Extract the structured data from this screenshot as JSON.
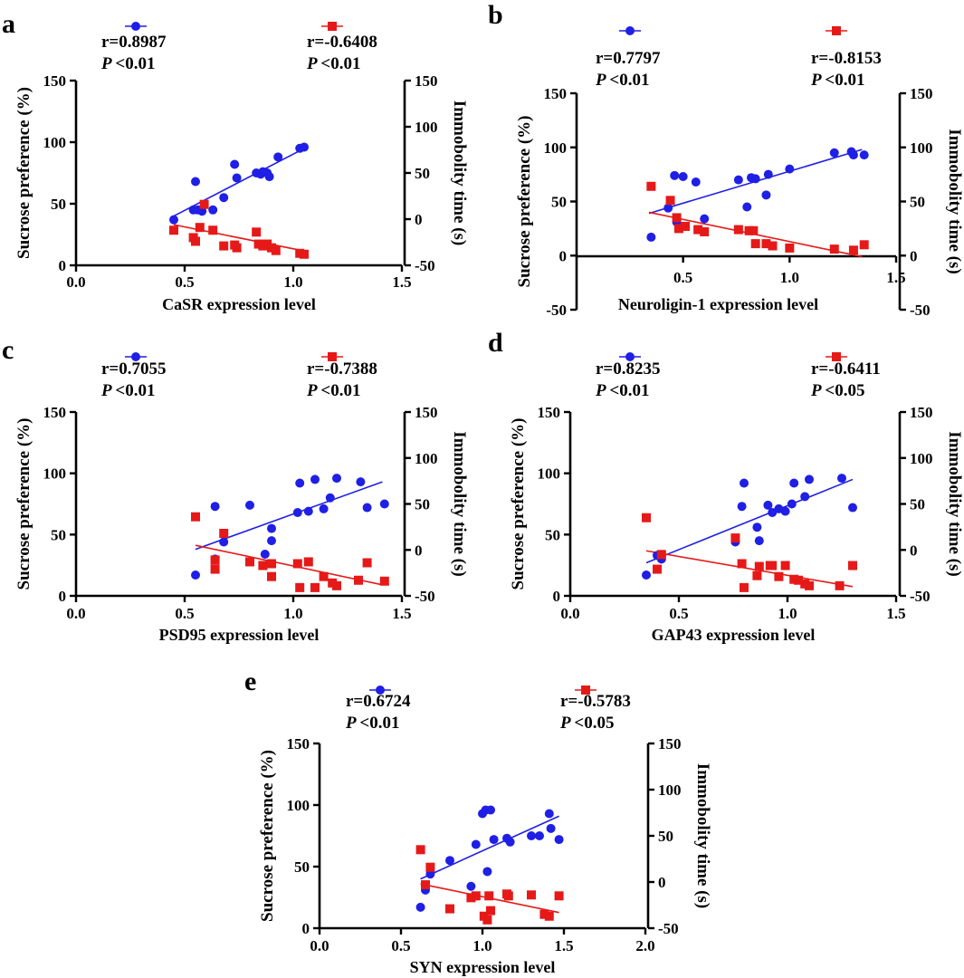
{
  "colors": {
    "sucrose": "#1f1fe6",
    "immobility": "#e61919",
    "axis": "#000000"
  },
  "chart_data": [
    {
      "panel": "a",
      "type": "scatter",
      "xlabel": "CaSR expression level",
      "ylabel_left": "Sucrose preference (%)",
      "ylabel_right": "Immobolity time (s)",
      "xlim": [
        0,
        1.5
      ],
      "xticks": [
        "0.0",
        "0.5",
        "1.0",
        "1.5"
      ],
      "ylim_left": [
        0,
        150
      ],
      "yticks_left": [
        "0",
        "50",
        "100",
        "150"
      ],
      "ylim_right": [
        -50,
        150
      ],
      "yticks_right": [
        "-50",
        "0",
        "50",
        "100",
        "150"
      ],
      "stats": {
        "r_sucrose": "r=0.8987",
        "p_sucrose": "P<0.01",
        "r_immobility": "r=-0.6408",
        "p_immobility": "P<0.01"
      },
      "sucrose_points": [
        [
          0.45,
          37
        ],
        [
          0.54,
          45
        ],
        [
          0.55,
          68
        ],
        [
          0.56,
          45
        ],
        [
          0.58,
          44
        ],
        [
          0.63,
          45
        ],
        [
          0.68,
          55
        ],
        [
          0.73,
          82
        ],
        [
          0.74,
          71
        ],
        [
          0.83,
          75
        ],
        [
          0.85,
          74
        ],
        [
          0.86,
          76
        ],
        [
          0.88,
          75
        ],
        [
          0.89,
          72
        ],
        [
          0.93,
          88
        ],
        [
          1.03,
          95
        ],
        [
          1.05,
          96
        ]
      ],
      "sucrose_fit": [
        [
          0.45,
          40
        ],
        [
          1.04,
          94
        ]
      ],
      "immobility_points": [
        [
          0.45,
          -12
        ],
        [
          0.54,
          -20
        ],
        [
          0.55,
          -24
        ],
        [
          0.57,
          -9
        ],
        [
          0.59,
          16
        ],
        [
          0.63,
          -12
        ],
        [
          0.68,
          -29
        ],
        [
          0.73,
          -28
        ],
        [
          0.74,
          -31
        ],
        [
          0.83,
          -14
        ],
        [
          0.84,
          -27
        ],
        [
          0.86,
          -29
        ],
        [
          0.88,
          -27
        ],
        [
          0.9,
          -31
        ],
        [
          0.92,
          -34
        ],
        [
          1.03,
          -37
        ],
        [
          1.05,
          -38
        ]
      ],
      "immobility_fit": [
        [
          0.45,
          -6
        ],
        [
          1.04,
          -34
        ]
      ]
    },
    {
      "panel": "b",
      "type": "scatter",
      "xlabel": "Neuroligin-1 expression level",
      "ylabel_left": "Sucrose preference (%)",
      "ylabel_right": "Immobolity time (s)",
      "xlim": [
        0,
        1.5
      ],
      "xticks": [
        "0.5",
        "1.0",
        "1.5"
      ],
      "ylim_left": [
        -50,
        150
      ],
      "yticks_left": [
        "-50",
        "0",
        "50",
        "100",
        "150"
      ],
      "ylim_right": [
        -50,
        150
      ],
      "yticks_right": [
        "-50",
        "0",
        "50",
        "100",
        "150"
      ],
      "stats": {
        "r_sucrose": "r=0.7797",
        "p_sucrose": "P<0.01",
        "r_immobility": "r=-0.8153",
        "p_immobility": "P<0.01"
      },
      "sucrose_points": [
        [
          0.35,
          17
        ],
        [
          0.43,
          44
        ],
        [
          0.46,
          74
        ],
        [
          0.47,
          31
        ],
        [
          0.5,
          73
        ],
        [
          0.56,
          68
        ],
        [
          0.6,
          34
        ],
        [
          0.76,
          70
        ],
        [
          0.8,
          45
        ],
        [
          0.82,
          72
        ],
        [
          0.84,
          71
        ],
        [
          0.89,
          56
        ],
        [
          0.9,
          75
        ],
        [
          1.0,
          80
        ],
        [
          1.21,
          95
        ],
        [
          1.29,
          96
        ],
        [
          1.3,
          93
        ],
        [
          1.35,
          93
        ]
      ],
      "sucrose_fit": [
        [
          0.34,
          39
        ],
        [
          1.34,
          98
        ]
      ],
      "immobility_points": [
        [
          0.35,
          64
        ],
        [
          0.44,
          51
        ],
        [
          0.47,
          35
        ],
        [
          0.48,
          25
        ],
        [
          0.51,
          27
        ],
        [
          0.57,
          24
        ],
        [
          0.6,
          22
        ],
        [
          0.76,
          24
        ],
        [
          0.81,
          23
        ],
        [
          0.83,
          23
        ],
        [
          0.84,
          11
        ],
        [
          0.89,
          11
        ],
        [
          0.92,
          9
        ],
        [
          1.0,
          7
        ],
        [
          1.21,
          6
        ],
        [
          1.3,
          5
        ],
        [
          1.35,
          10
        ]
      ],
      "immobility_fit": [
        [
          0.34,
          40
        ],
        [
          1.34,
          -1
        ]
      ]
    },
    {
      "panel": "c",
      "type": "scatter",
      "xlabel": "PSD95 expression level",
      "ylabel_left": "Sucrose preference (%)",
      "ylabel_right": "Immobolity time (s)",
      "xlim": [
        0,
        1.5
      ],
      "xticks": [
        "0.0",
        "0.5",
        "1.0",
        "1.5"
      ],
      "ylim_left": [
        0,
        150
      ],
      "yticks_left": [
        "0",
        "50",
        "100",
        "150"
      ],
      "ylim_right": [
        -50,
        150
      ],
      "yticks_right": [
        "-50",
        "0",
        "50",
        "100",
        "150"
      ],
      "stats": {
        "r_sucrose": "r=0.7055",
        "p_sucrose": "P<0.01",
        "r_immobility": "r=-0.7388",
        "p_immobility": "P<0.01"
      },
      "sucrose_points": [
        [
          0.55,
          17
        ],
        [
          0.64,
          30
        ],
        [
          0.64,
          73
        ],
        [
          0.68,
          44
        ],
        [
          0.8,
          74
        ],
        [
          0.87,
          34
        ],
        [
          0.9,
          55
        ],
        [
          0.9,
          45
        ],
        [
          1.02,
          68
        ],
        [
          1.03,
          92
        ],
        [
          1.07,
          69
        ],
        [
          1.1,
          95
        ],
        [
          1.14,
          71
        ],
        [
          1.17,
          80
        ],
        [
          1.2,
          96
        ],
        [
          1.31,
          93
        ],
        [
          1.34,
          72
        ],
        [
          1.42,
          75
        ]
      ],
      "sucrose_fit": [
        [
          0.55,
          38
        ],
        [
          1.41,
          93
        ]
      ],
      "immobility_points": [
        [
          0.55,
          36
        ],
        [
          0.64,
          -21
        ],
        [
          0.64,
          -11
        ],
        [
          0.68,
          18
        ],
        [
          0.8,
          -13
        ],
        [
          0.86,
          -17
        ],
        [
          0.9,
          -15
        ],
        [
          0.9,
          -29
        ],
        [
          1.02,
          -15
        ],
        [
          1.03,
          -41
        ],
        [
          1.07,
          -13
        ],
        [
          1.1,
          -41
        ],
        [
          1.14,
          -29
        ],
        [
          1.18,
          -36
        ],
        [
          1.2,
          -39
        ],
        [
          1.3,
          -33
        ],
        [
          1.34,
          -14
        ],
        [
          1.42,
          -34
        ]
      ],
      "immobility_fit": [
        [
          0.55,
          5
        ],
        [
          1.41,
          -38
        ]
      ]
    },
    {
      "panel": "d",
      "type": "scatter",
      "xlabel": "GAP43 expression level",
      "ylabel_left": "Sucrose preference (%)",
      "ylabel_right": "Immobolity time (s)",
      "xlim": [
        0,
        1.5
      ],
      "xticks": [
        "0.0",
        "0.5",
        "1.0",
        "1.5"
      ],
      "ylim_left": [
        0,
        150
      ],
      "yticks_left": [
        "0",
        "50",
        "100",
        "150"
      ],
      "ylim_right": [
        -50,
        150
      ],
      "yticks_right": [
        "-50",
        "0",
        "50",
        "100",
        "150"
      ],
      "stats": {
        "r_sucrose": "r=0.8235",
        "p_sucrose": "P<0.01",
        "r_immobility": "r=-0.6411",
        "p_immobility": "P<0.05"
      },
      "sucrose_points": [
        [
          0.35,
          17
        ],
        [
          0.4,
          33
        ],
        [
          0.42,
          32
        ],
        [
          0.42,
          30
        ],
        [
          0.76,
          44
        ],
        [
          0.79,
          73
        ],
        [
          0.8,
          92
        ],
        [
          0.86,
          56
        ],
        [
          0.87,
          45
        ],
        [
          0.91,
          74
        ],
        [
          0.93,
          68
        ],
        [
          0.96,
          71
        ],
        [
          0.99,
          69
        ],
        [
          1.02,
          75
        ],
        [
          1.03,
          92
        ],
        [
          1.08,
          81
        ],
        [
          1.1,
          95
        ],
        [
          1.25,
          96
        ],
        [
          1.3,
          72
        ]
      ],
      "sucrose_fit": [
        [
          0.35,
          27
        ],
        [
          1.3,
          95
        ]
      ],
      "immobility_points": [
        [
          0.35,
          35
        ],
        [
          0.4,
          -21
        ],
        [
          0.42,
          -5
        ],
        [
          0.76,
          13
        ],
        [
          0.79,
          -15
        ],
        [
          0.8,
          -41
        ],
        [
          0.86,
          -28
        ],
        [
          0.87,
          -18
        ],
        [
          0.92,
          -17
        ],
        [
          0.93,
          -17
        ],
        [
          0.96,
          -29
        ],
        [
          0.99,
          -17
        ],
        [
          1.03,
          -32
        ],
        [
          1.05,
          -33
        ],
        [
          1.08,
          -37
        ],
        [
          1.1,
          -39
        ],
        [
          1.24,
          -39
        ],
        [
          1.3,
          -17
        ]
      ],
      "immobility_fit": [
        [
          0.35,
          -1
        ],
        [
          1.3,
          -40
        ]
      ]
    },
    {
      "panel": "e",
      "type": "scatter",
      "xlabel": "SYN expression level",
      "ylabel_left": "Sucrose preference (%)",
      "ylabel_right": "Immobolity time (s)",
      "xlim": [
        0,
        2.0
      ],
      "xticks": [
        "0.0",
        "0.5",
        "1.0",
        "1.5",
        "2.0"
      ],
      "ylim_left": [
        0,
        150
      ],
      "yticks_left": [
        "0",
        "50",
        "100",
        "150"
      ],
      "ylim_right": [
        -50,
        150
      ],
      "yticks_right": [
        "-50",
        "0",
        "50",
        "100",
        "150"
      ],
      "stats": {
        "r_sucrose": "r=0.6724",
        "p_sucrose": "P<0.01",
        "r_immobility": "r=-0.5783",
        "p_immobility": "P<0.05"
      },
      "sucrose_points": [
        [
          0.62,
          17
        ],
        [
          0.65,
          31
        ],
        [
          0.68,
          44
        ],
        [
          0.8,
          55
        ],
        [
          0.93,
          34
        ],
        [
          0.96,
          68
        ],
        [
          1.0,
          93
        ],
        [
          1.02,
          96
        ],
        [
          1.03,
          46
        ],
        [
          1.05,
          96
        ],
        [
          1.07,
          72
        ],
        [
          1.15,
          73
        ],
        [
          1.17,
          70
        ],
        [
          1.3,
          75
        ],
        [
          1.35,
          75
        ],
        [
          1.41,
          93
        ],
        [
          1.42,
          81
        ],
        [
          1.47,
          72
        ]
      ],
      "sucrose_fit": [
        [
          0.62,
          40
        ],
        [
          1.47,
          91
        ]
      ],
      "immobility_points": [
        [
          0.62,
          35
        ],
        [
          0.65,
          -3
        ],
        [
          0.68,
          16
        ],
        [
          0.8,
          -29
        ],
        [
          0.93,
          -17
        ],
        [
          0.96,
          -15
        ],
        [
          1.01,
          -37
        ],
        [
          1.03,
          -41
        ],
        [
          1.04,
          -15
        ],
        [
          1.05,
          -31
        ],
        [
          1.15,
          -13
        ],
        [
          1.16,
          -15
        ],
        [
          1.3,
          -14
        ],
        [
          1.38,
          -35
        ],
        [
          1.41,
          -37
        ],
        [
          1.47,
          -15
        ]
      ],
      "immobility_fit": [
        [
          0.62,
          -2
        ],
        [
          1.47,
          -33
        ]
      ]
    }
  ]
}
